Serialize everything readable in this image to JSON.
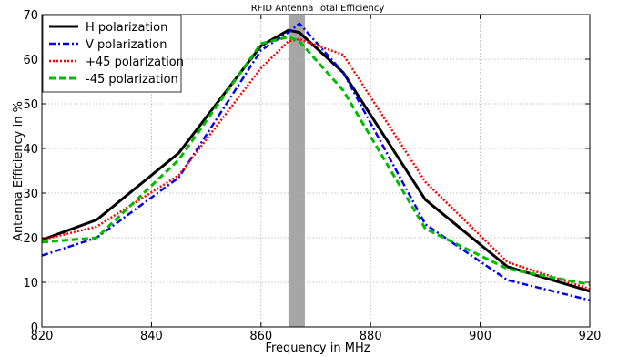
{
  "chart_data": {
    "type": "line",
    "title": "RFID Antenna Total Efficiency",
    "xlabel": "Frequency in MHz",
    "ylabel": "Antenna Efficiency in %",
    "xlim": [
      820,
      920
    ],
    "ylim": [
      0,
      70
    ],
    "xticks": [
      820,
      840,
      860,
      880,
      900,
      920
    ],
    "yticks": [
      0,
      10,
      20,
      30,
      40,
      50,
      60,
      70
    ],
    "grid": true,
    "legend_position": "top-left",
    "highlight_band": {
      "x_start": 865,
      "x_end": 868,
      "color": "#a6a6a6"
    },
    "x": [
      820,
      830,
      845,
      860,
      865,
      867,
      875,
      890,
      905,
      920
    ],
    "series": [
      {
        "name": "H polarization",
        "color": "#000000",
        "dash": "solid",
        "width": 3,
        "values": [
          19.5,
          24,
          39,
          63,
          66.5,
          66,
          57,
          28.5,
          13.5,
          8
        ]
      },
      {
        "name": "V polarization",
        "color": "#0000ee",
        "dash": "dashdot",
        "width": 2.5,
        "values": [
          16,
          20,
          33.5,
          62,
          66,
          68,
          57,
          23,
          10.5,
          6
        ]
      },
      {
        "name": "+45 polarization",
        "color": "#ff0000",
        "dash": "dotted",
        "width": 2.5,
        "values": [
          19.5,
          22.5,
          34,
          58,
          64,
          64.5,
          61,
          32.5,
          14.5,
          8.5
        ]
      },
      {
        "name": "-45 polarization",
        "color": "#00bb00",
        "dash": "dashed",
        "width": 3,
        "values": [
          19,
          20,
          37.5,
          63.5,
          65,
          64,
          53,
          22,
          13,
          9.5
        ]
      }
    ]
  }
}
